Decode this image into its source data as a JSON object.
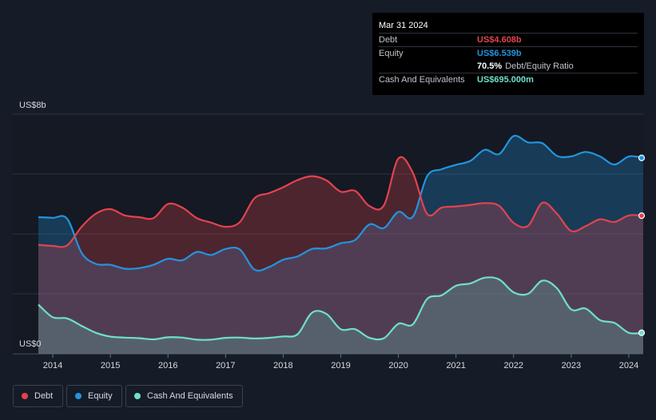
{
  "tooltip": {
    "date": "Mar 31 2024",
    "debt_label": "Debt",
    "debt_value": "US$4.608b",
    "equity_label": "Equity",
    "equity_value": "US$6.539b",
    "ratio_pct": "70.5%",
    "ratio_label": "Debt/Equity Ratio",
    "cash_label": "Cash And Equivalents",
    "cash_value": "US$695.000m"
  },
  "legend": {
    "debt": "Debt",
    "equity": "Equity",
    "cash": "Cash And Equivalents"
  },
  "colors": {
    "debt": "#e2434f",
    "equity": "#2394df",
    "cash": "#6ee0c8",
    "background": "#151b27"
  },
  "chart_data": {
    "type": "area",
    "unit": "US$b",
    "y_top_label": "US$8b",
    "y_bottom_label": "US$0",
    "ylim": [
      0,
      8
    ],
    "xlim": [
      2013.75,
      2024.25
    ],
    "x_ticks": [
      "2014",
      "2015",
      "2016",
      "2017",
      "2018",
      "2019",
      "2020",
      "2021",
      "2022",
      "2023",
      "2024"
    ],
    "grid": true,
    "legend_position": "bottom-left",
    "series": [
      {
        "name": "Debt",
        "points": [
          [
            2013.75,
            3.64
          ],
          [
            2014.0,
            3.6
          ],
          [
            2014.25,
            3.62
          ],
          [
            2014.5,
            4.24
          ],
          [
            2014.75,
            4.68
          ],
          [
            2015.0,
            4.83
          ],
          [
            2015.25,
            4.62
          ],
          [
            2015.5,
            4.56
          ],
          [
            2015.75,
            4.53
          ],
          [
            2016.0,
            5.0
          ],
          [
            2016.25,
            4.88
          ],
          [
            2016.5,
            4.53
          ],
          [
            2016.75,
            4.38
          ],
          [
            2017.0,
            4.24
          ],
          [
            2017.25,
            4.4
          ],
          [
            2017.5,
            5.19
          ],
          [
            2017.75,
            5.36
          ],
          [
            2018.0,
            5.56
          ],
          [
            2018.25,
            5.8
          ],
          [
            2018.5,
            5.93
          ],
          [
            2018.75,
            5.79
          ],
          [
            2019.0,
            5.41
          ],
          [
            2019.25,
            5.44
          ],
          [
            2019.5,
            4.93
          ],
          [
            2019.75,
            4.96
          ],
          [
            2020.0,
            6.52
          ],
          [
            2020.25,
            6.05
          ],
          [
            2020.5,
            4.67
          ],
          [
            2020.75,
            4.88
          ],
          [
            2021.0,
            4.92
          ],
          [
            2021.25,
            4.97
          ],
          [
            2021.5,
            5.03
          ],
          [
            2021.75,
            4.94
          ],
          [
            2022.0,
            4.37
          ],
          [
            2022.25,
            4.27
          ],
          [
            2022.5,
            5.04
          ],
          [
            2022.75,
            4.68
          ],
          [
            2023.0,
            4.1
          ],
          [
            2023.25,
            4.26
          ],
          [
            2023.5,
            4.49
          ],
          [
            2023.75,
            4.4
          ],
          [
            2024.0,
            4.62
          ],
          [
            2024.25,
            4.61
          ]
        ]
      },
      {
        "name": "Equity",
        "points": [
          [
            2013.75,
            4.56
          ],
          [
            2014.0,
            4.54
          ],
          [
            2014.25,
            4.51
          ],
          [
            2014.5,
            3.37
          ],
          [
            2014.75,
            3.0
          ],
          [
            2015.0,
            2.97
          ],
          [
            2015.25,
            2.84
          ],
          [
            2015.5,
            2.86
          ],
          [
            2015.75,
            2.97
          ],
          [
            2016.0,
            3.17
          ],
          [
            2016.25,
            3.12
          ],
          [
            2016.5,
            3.4
          ],
          [
            2016.75,
            3.3
          ],
          [
            2017.0,
            3.5
          ],
          [
            2017.25,
            3.48
          ],
          [
            2017.5,
            2.81
          ],
          [
            2017.75,
            2.89
          ],
          [
            2018.0,
            3.14
          ],
          [
            2018.25,
            3.25
          ],
          [
            2018.5,
            3.5
          ],
          [
            2018.75,
            3.52
          ],
          [
            2019.0,
            3.69
          ],
          [
            2019.25,
            3.8
          ],
          [
            2019.5,
            4.32
          ],
          [
            2019.75,
            4.2
          ],
          [
            2020.0,
            4.74
          ],
          [
            2020.25,
            4.57
          ],
          [
            2020.5,
            5.93
          ],
          [
            2020.75,
            6.16
          ],
          [
            2021.0,
            6.31
          ],
          [
            2021.25,
            6.44
          ],
          [
            2021.5,
            6.81
          ],
          [
            2021.75,
            6.67
          ],
          [
            2022.0,
            7.27
          ],
          [
            2022.25,
            7.06
          ],
          [
            2022.5,
            7.03
          ],
          [
            2022.75,
            6.61
          ],
          [
            2023.0,
            6.59
          ],
          [
            2023.25,
            6.74
          ],
          [
            2023.5,
            6.59
          ],
          [
            2023.75,
            6.32
          ],
          [
            2024.0,
            6.59
          ],
          [
            2024.25,
            6.54
          ]
        ]
      },
      {
        "name": "Cash And Equivalents",
        "points": [
          [
            2013.75,
            1.64
          ],
          [
            2014.0,
            1.22
          ],
          [
            2014.25,
            1.18
          ],
          [
            2014.5,
            0.93
          ],
          [
            2014.75,
            0.7
          ],
          [
            2015.0,
            0.57
          ],
          [
            2015.25,
            0.54
          ],
          [
            2015.5,
            0.52
          ],
          [
            2015.75,
            0.48
          ],
          [
            2016.0,
            0.55
          ],
          [
            2016.25,
            0.54
          ],
          [
            2016.5,
            0.47
          ],
          [
            2016.75,
            0.47
          ],
          [
            2017.0,
            0.53
          ],
          [
            2017.25,
            0.54
          ],
          [
            2017.5,
            0.51
          ],
          [
            2017.75,
            0.53
          ],
          [
            2018.0,
            0.58
          ],
          [
            2018.25,
            0.65
          ],
          [
            2018.5,
            1.37
          ],
          [
            2018.75,
            1.33
          ],
          [
            2019.0,
            0.82
          ],
          [
            2019.25,
            0.82
          ],
          [
            2019.5,
            0.53
          ],
          [
            2019.75,
            0.52
          ],
          [
            2020.0,
            1.0
          ],
          [
            2020.25,
            0.98
          ],
          [
            2020.5,
            1.83
          ],
          [
            2020.75,
            1.95
          ],
          [
            2021.0,
            2.27
          ],
          [
            2021.25,
            2.35
          ],
          [
            2021.5,
            2.54
          ],
          [
            2021.75,
            2.48
          ],
          [
            2022.0,
            2.05
          ],
          [
            2022.25,
            2.0
          ],
          [
            2022.5,
            2.44
          ],
          [
            2022.75,
            2.19
          ],
          [
            2023.0,
            1.48
          ],
          [
            2023.25,
            1.51
          ],
          [
            2023.5,
            1.12
          ],
          [
            2023.75,
            1.03
          ],
          [
            2024.0,
            0.7
          ],
          [
            2024.25,
            0.7
          ]
        ]
      }
    ]
  }
}
